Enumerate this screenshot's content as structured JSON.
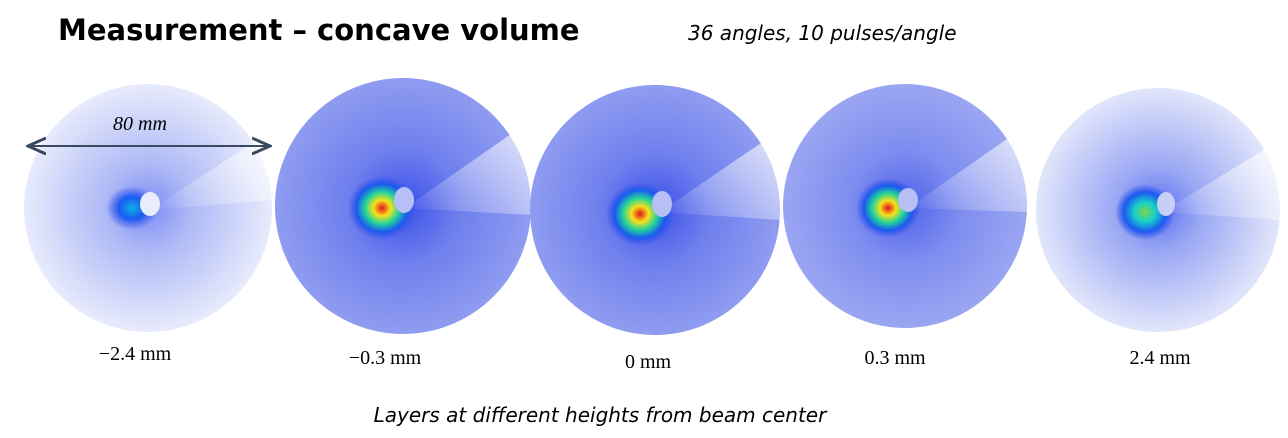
{
  "title": "Measurement – concave volume",
  "subtitle": "36 angles, 10 pulses/angle",
  "scale_label": "80 mm",
  "layers": [
    {
      "label": "−2.4 mm"
    },
    {
      "label": "−0.3 mm"
    },
    {
      "label": "0 mm"
    },
    {
      "label": "0.3 mm"
    },
    {
      "label": "2.4 mm"
    }
  ],
  "caption": "Layers at different heights from beam center"
}
